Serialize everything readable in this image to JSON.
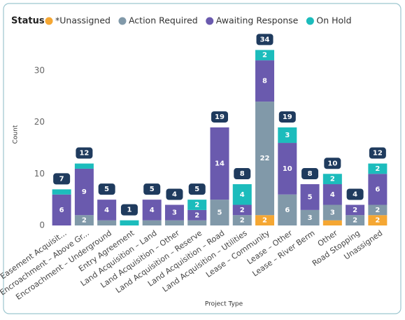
{
  "chart_data": {
    "type": "stacked_bar",
    "legend_title": "Status",
    "y_label": "Count",
    "x_label": "Project Type",
    "categories": [
      "Easement Acquisit...",
      "Encroachment – Above Gr...",
      "Encroachment – Underground",
      "Entry Agreement",
      "Land Acquisition – Land",
      "Land Acquisition – Other",
      "Land Acquisition – Reserve",
      "Land Acquisition – Road",
      "Land Acquisition – Utilities",
      "Lease – Community",
      "Lease – Other",
      "Lease – River Berm",
      "Other",
      "Road Stopping",
      "Unassigned"
    ],
    "series": [
      {
        "name": "*Unassigned",
        "color": "#f5a733",
        "values": [
          0,
          0,
          0,
          0,
          0,
          0,
          0,
          0,
          0,
          2,
          0,
          0,
          1,
          0,
          2
        ]
      },
      {
        "name": "Action Required",
        "color": "#8199a9",
        "values": [
          0,
          2,
          1,
          0,
          1,
          1,
          1,
          5,
          2,
          22,
          6,
          3,
          3,
          2,
          2
        ]
      },
      {
        "name": "Awaiting Response",
        "color": "#6a5aae",
        "values": [
          6,
          9,
          4,
          0,
          4,
          3,
          2,
          14,
          2,
          8,
          10,
          5,
          4,
          2,
          6
        ]
      },
      {
        "name": "On Hold",
        "color": "#1cbcbc",
        "values": [
          1,
          1,
          0,
          1,
          0,
          0,
          2,
          0,
          4,
          2,
          3,
          0,
          2,
          0,
          2
        ]
      }
    ],
    "totals": [
      7,
      12,
      5,
      1,
      5,
      4,
      5,
      19,
      8,
      34,
      19,
      8,
      10,
      4,
      12
    ],
    "ylim": [
      0,
      35
    ],
    "yticks": [
      0,
      10,
      20,
      30
    ]
  }
}
